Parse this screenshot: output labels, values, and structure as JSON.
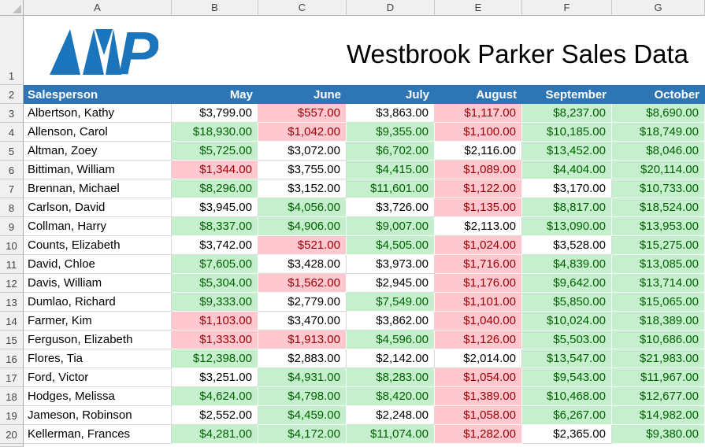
{
  "title": "Westbrook Parker Sales Data",
  "logo": {
    "p_letter": "P",
    "color": "#1B75BC"
  },
  "colors": {
    "header_bg": "#2E75B6",
    "header_text": "#FFFFFF",
    "good_bg": "#C6EFCE",
    "good_text": "#006100",
    "bad_bg": "#FFC7CE",
    "bad_text": "#9C0006",
    "neutral_bg": "#FFFFFF",
    "neutral_text": "#000000"
  },
  "grid": {
    "column_letters": [
      "A",
      "B",
      "C",
      "D",
      "E",
      "F",
      "G"
    ],
    "row_numbers": [
      "1",
      "2",
      "3",
      "4",
      "5",
      "6",
      "7",
      "8",
      "9",
      "10",
      "11",
      "12",
      "13",
      "14",
      "15",
      "16",
      "17",
      "18",
      "19",
      "20"
    ]
  },
  "table": {
    "headers": [
      "Salesperson",
      "May",
      "June",
      "July",
      "August",
      "September",
      "October"
    ],
    "rows": [
      {
        "name": "Albertson, Kathy",
        "values": [
          "$3,799.00",
          "$557.00",
          "$3,863.00",
          "$1,117.00",
          "$8,237.00",
          "$8,690.00"
        ],
        "states": [
          "n",
          "b",
          "n",
          "b",
          "g",
          "g"
        ]
      },
      {
        "name": "Allenson, Carol",
        "values": [
          "$18,930.00",
          "$1,042.00",
          "$9,355.00",
          "$1,100.00",
          "$10,185.00",
          "$18,749.00"
        ],
        "states": [
          "g",
          "b",
          "g",
          "b",
          "g",
          "g"
        ]
      },
      {
        "name": "Altman, Zoey",
        "values": [
          "$5,725.00",
          "$3,072.00",
          "$6,702.00",
          "$2,116.00",
          "$13,452.00",
          "$8,046.00"
        ],
        "states": [
          "g",
          "n",
          "g",
          "n",
          "g",
          "g"
        ]
      },
      {
        "name": "Bittiman, William",
        "values": [
          "$1,344.00",
          "$3,755.00",
          "$4,415.00",
          "$1,089.00",
          "$4,404.00",
          "$20,114.00"
        ],
        "states": [
          "b",
          "n",
          "g",
          "b",
          "g",
          "g"
        ]
      },
      {
        "name": "Brennan, Michael",
        "values": [
          "$8,296.00",
          "$3,152.00",
          "$11,601.00",
          "$1,122.00",
          "$3,170.00",
          "$10,733.00"
        ],
        "states": [
          "g",
          "n",
          "g",
          "b",
          "n",
          "g"
        ]
      },
      {
        "name": "Carlson, David",
        "values": [
          "$3,945.00",
          "$4,056.00",
          "$3,726.00",
          "$1,135.00",
          "$8,817.00",
          "$18,524.00"
        ],
        "states": [
          "n",
          "g",
          "n",
          "b",
          "g",
          "g"
        ]
      },
      {
        "name": "Collman, Harry",
        "values": [
          "$8,337.00",
          "$4,906.00",
          "$9,007.00",
          "$2,113.00",
          "$13,090.00",
          "$13,953.00"
        ],
        "states": [
          "g",
          "g",
          "g",
          "n",
          "g",
          "g"
        ]
      },
      {
        "name": "Counts, Elizabeth",
        "values": [
          "$3,742.00",
          "$521.00",
          "$4,505.00",
          "$1,024.00",
          "$3,528.00",
          "$15,275.00"
        ],
        "states": [
          "n",
          "b",
          "g",
          "b",
          "n",
          "g"
        ]
      },
      {
        "name": "David, Chloe",
        "values": [
          "$7,605.00",
          "$3,428.00",
          "$3,973.00",
          "$1,716.00",
          "$4,839.00",
          "$13,085.00"
        ],
        "states": [
          "g",
          "n",
          "n",
          "b",
          "g",
          "g"
        ]
      },
      {
        "name": "Davis, William",
        "values": [
          "$5,304.00",
          "$1,562.00",
          "$2,945.00",
          "$1,176.00",
          "$9,642.00",
          "$13,714.00"
        ],
        "states": [
          "g",
          "b",
          "n",
          "b",
          "g",
          "g"
        ]
      },
      {
        "name": "Dumlao, Richard",
        "values": [
          "$9,333.00",
          "$2,779.00",
          "$7,549.00",
          "$1,101.00",
          "$5,850.00",
          "$15,065.00"
        ],
        "states": [
          "g",
          "n",
          "g",
          "b",
          "g",
          "g"
        ]
      },
      {
        "name": "Farmer, Kim",
        "values": [
          "$1,103.00",
          "$3,470.00",
          "$3,862.00",
          "$1,040.00",
          "$10,024.00",
          "$18,389.00"
        ],
        "states": [
          "b",
          "n",
          "n",
          "b",
          "g",
          "g"
        ]
      },
      {
        "name": "Ferguson, Elizabeth",
        "values": [
          "$1,333.00",
          "$1,913.00",
          "$4,596.00",
          "$1,126.00",
          "$5,503.00",
          "$10,686.00"
        ],
        "states": [
          "b",
          "b",
          "g",
          "b",
          "g",
          "g"
        ]
      },
      {
        "name": "Flores, Tia",
        "values": [
          "$12,398.00",
          "$2,883.00",
          "$2,142.00",
          "$2,014.00",
          "$13,547.00",
          "$21,983.00"
        ],
        "states": [
          "g",
          "n",
          "n",
          "n",
          "g",
          "g"
        ]
      },
      {
        "name": "Ford, Victor",
        "values": [
          "$3,251.00",
          "$4,931.00",
          "$8,283.00",
          "$1,054.00",
          "$9,543.00",
          "$11,967.00"
        ],
        "states": [
          "n",
          "g",
          "g",
          "b",
          "g",
          "g"
        ]
      },
      {
        "name": "Hodges, Melissa",
        "values": [
          "$4,624.00",
          "$4,798.00",
          "$8,420.00",
          "$1,389.00",
          "$10,468.00",
          "$12,677.00"
        ],
        "states": [
          "g",
          "g",
          "g",
          "b",
          "g",
          "g"
        ]
      },
      {
        "name": "Jameson, Robinson",
        "values": [
          "$2,552.00",
          "$4,459.00",
          "$2,248.00",
          "$1,058.00",
          "$6,267.00",
          "$14,982.00"
        ],
        "states": [
          "n",
          "g",
          "n",
          "b",
          "g",
          "g"
        ]
      },
      {
        "name": "Kellerman, Frances",
        "values": [
          "$4,281.00",
          "$4,172.00",
          "$11,074.00",
          "$1,282.00",
          "$2,365.00",
          "$9,380.00"
        ],
        "states": [
          "g",
          "g",
          "g",
          "b",
          "n",
          "g"
        ]
      }
    ]
  }
}
